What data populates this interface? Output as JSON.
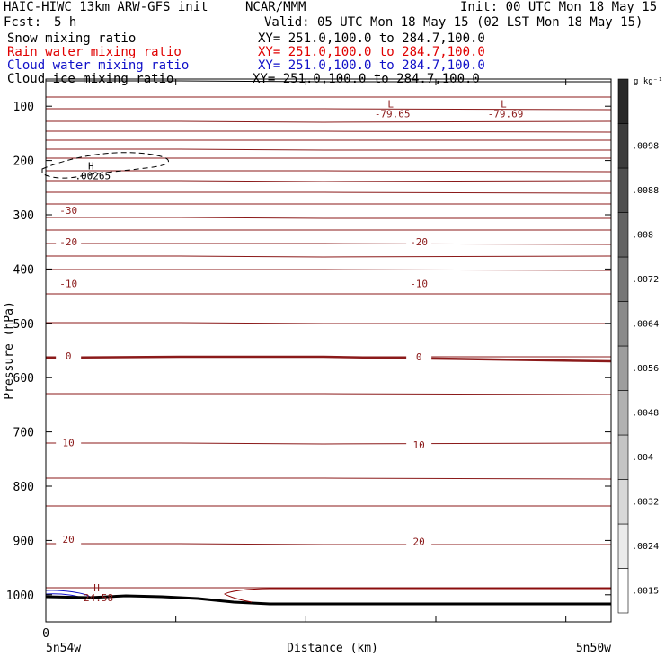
{
  "header": {
    "title": "HAIC-HIWC 13km ARW-GFS init",
    "center": "NCAR/MMM",
    "init": "Init: 00 UTC Mon 18 May 15",
    "fcst_label": "Fcst:",
    "fcst_value": "5 h",
    "valid": "Valid: 05 UTC Mon 18 May 15 (02 LST Mon 18 May 15)"
  },
  "fields": [
    {
      "name": "Snow mixing ratio",
      "xy": "XY= 251.0,100.0 to 284.7,100.0",
      "color": "#000000"
    },
    {
      "name": "Rain water mixing ratio",
      "xy": "XY= 251.0,100.0 to 284.7,100.0",
      "color": "#e00000"
    },
    {
      "name": "Cloud water mixing ratio",
      "xy": "XY= 251.0,100.0 to 284.7,100.0",
      "color": "#1010c8"
    },
    {
      "name": "Cloud ice mixing ratio",
      "xy": "XY= 251.0,100.0 to 284.7,100.0",
      "color": "#000000"
    }
  ],
  "chart_data": {
    "type": "line",
    "ylabel": "Pressure (hPa)",
    "xlabel": "Distance (km)",
    "y_ticks": [
      100,
      200,
      300,
      400,
      500,
      600,
      700,
      800,
      900,
      1000
    ],
    "ylim": [
      50,
      1050
    ],
    "x_zero_label": "0",
    "x_left_label": "5n54w",
    "x_right_label": "5n50w",
    "colorbar": {
      "unit": "g kg⁻¹",
      "levels": [
        ".0015",
        ".0024",
        ".0032",
        ".004",
        ".0048",
        ".0056",
        ".0064",
        ".0072",
        ".008",
        ".0088",
        ".0098"
      ]
    },
    "contour_labels": [
      {
        "text": "-30",
        "x": 0.04,
        "p": 292
      },
      {
        "text": "-20",
        "x": 0.04,
        "p": 350
      },
      {
        "text": "-20",
        "x": 0.66,
        "p": 350
      },
      {
        "text": "-10",
        "x": 0.04,
        "p": 427
      },
      {
        "text": "-10",
        "x": 0.66,
        "p": 427
      },
      {
        "text": "0",
        "x": 0.04,
        "p": 560
      },
      {
        "text": "0",
        "x": 0.66,
        "p": 562
      },
      {
        "text": "10",
        "x": 0.04,
        "p": 720
      },
      {
        "text": "10",
        "x": 0.66,
        "p": 724
      },
      {
        "text": "20",
        "x": 0.04,
        "p": 898
      },
      {
        "text": "20",
        "x": 0.66,
        "p": 902
      }
    ],
    "extrema": [
      {
        "mark": "L",
        "value": "-79.65",
        "x": 0.61,
        "p": 102
      },
      {
        "mark": "L",
        "value": "-79.69",
        "x": 0.81,
        "p": 102
      },
      {
        "mark": "H",
        "value": ".00265",
        "x": 0.08,
        "p": 216
      },
      {
        "mark": "H",
        "value": "24.58",
        "x": 0.09,
        "p": 994
      }
    ]
  }
}
